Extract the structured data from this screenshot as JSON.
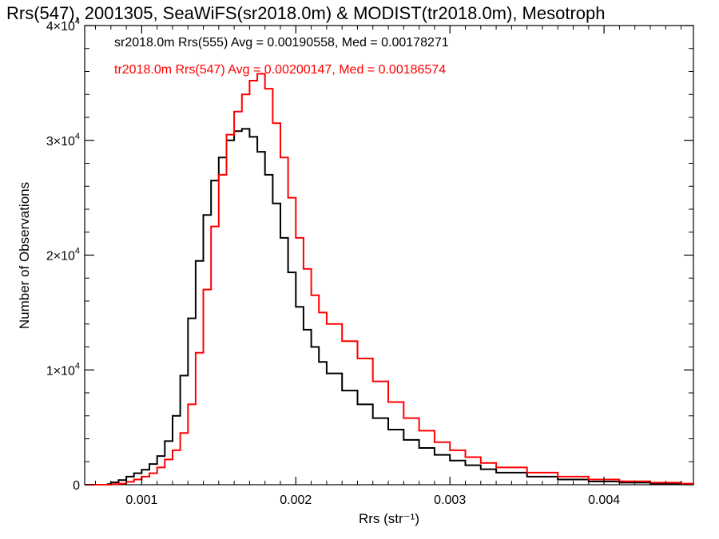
{
  "chart_data": {
    "type": "line",
    "title": "Rrs(547), 2001305, SeaWiFS(sr2018.0m) & MODIST(tr2018.0m), Mesotroph",
    "xlabel": "Rrs (str⁻¹)",
    "ylabel": "Number of Observations",
    "xlim": [
      0.00063,
      0.00458
    ],
    "ylim": [
      0,
      40000
    ],
    "x_ticks": [
      0.001,
      0.002,
      0.003,
      0.004
    ],
    "x_tick_labels": [
      "0.001",
      "0.002",
      "0.003",
      "0.004"
    ],
    "y_ticks": [
      0,
      10000,
      20000,
      30000,
      40000
    ],
    "y_tick_labels": [
      {
        "mantissa": "0",
        "exponent": ""
      },
      {
        "mantissa": "1×10",
        "exponent": "4"
      },
      {
        "mantissa": "2×10",
        "exponent": "4"
      },
      {
        "mantissa": "3×10",
        "exponent": "4"
      },
      {
        "mantissa": "4×10",
        "exponent": "4"
      }
    ],
    "legend_position": "top-left",
    "grid": false,
    "series": [
      {
        "name": "sr2018.0m Rrs(555) Avg = 0.00190558, Med = 0.00178271",
        "color": "#000000",
        "x": [
          0.00063,
          0.0007,
          0.00078,
          0.0008,
          0.00085,
          0.0009,
          0.00095,
          0.001,
          0.00105,
          0.0011,
          0.00115,
          0.0012,
          0.00125,
          0.0013,
          0.00135,
          0.0014,
          0.00145,
          0.0015,
          0.00155,
          0.0016,
          0.00165,
          0.0017,
          0.00175,
          0.0018,
          0.00185,
          0.0019,
          0.00195,
          0.002,
          0.00205,
          0.0021,
          0.00215,
          0.0022,
          0.0023,
          0.0024,
          0.0025,
          0.0026,
          0.0027,
          0.0028,
          0.0029,
          0.003,
          0.0031,
          0.0032,
          0.0033,
          0.0035,
          0.0037,
          0.0039,
          0.0041,
          0.0043,
          0.0045,
          0.00458
        ],
        "y": [
          0,
          0,
          50,
          200,
          400,
          700,
          1000,
          1300,
          1800,
          2500,
          3800,
          6000,
          9500,
          14500,
          19500,
          23500,
          26500,
          28500,
          30000,
          30800,
          31000,
          30300,
          29000,
          27000,
          24500,
          21500,
          18500,
          15500,
          13500,
          12000,
          10700,
          9700,
          8200,
          7000,
          5800,
          4800,
          3900,
          3200,
          2600,
          2100,
          1700,
          1350,
          1050,
          700,
          450,
          280,
          180,
          100,
          50,
          30
        ]
      },
      {
        "name": "tr2018.0m Rrs(547) Avg = 0.00200147, Med = 0.00186574",
        "color": "#ff0000",
        "x": [
          0.00063,
          0.0007,
          0.0008,
          0.00085,
          0.0009,
          0.00095,
          0.001,
          0.00105,
          0.0011,
          0.00115,
          0.0012,
          0.00125,
          0.0013,
          0.00135,
          0.0014,
          0.00145,
          0.0015,
          0.00155,
          0.0016,
          0.00165,
          0.0017,
          0.00175,
          0.0018,
          0.00185,
          0.0019,
          0.00195,
          0.002,
          0.00205,
          0.0021,
          0.00215,
          0.0022,
          0.0023,
          0.0024,
          0.0025,
          0.0026,
          0.0027,
          0.0028,
          0.0029,
          0.003,
          0.0031,
          0.0032,
          0.0033,
          0.0035,
          0.0037,
          0.0039,
          0.0041,
          0.0043,
          0.0045,
          0.00458
        ],
        "y": [
          0,
          0,
          50,
          100,
          250,
          450,
          700,
          1000,
          1500,
          2200,
          3000,
          4500,
          7000,
          11500,
          17000,
          22500,
          27000,
          30500,
          32500,
          34000,
          35200,
          35800,
          34500,
          31500,
          28500,
          25000,
          21500,
          18800,
          16500,
          15000,
          14000,
          12500,
          11000,
          9000,
          7200,
          5800,
          4700,
          3700,
          3000,
          2400,
          1900,
          1500,
          1050,
          700,
          450,
          300,
          180,
          100,
          60
        ]
      }
    ]
  }
}
